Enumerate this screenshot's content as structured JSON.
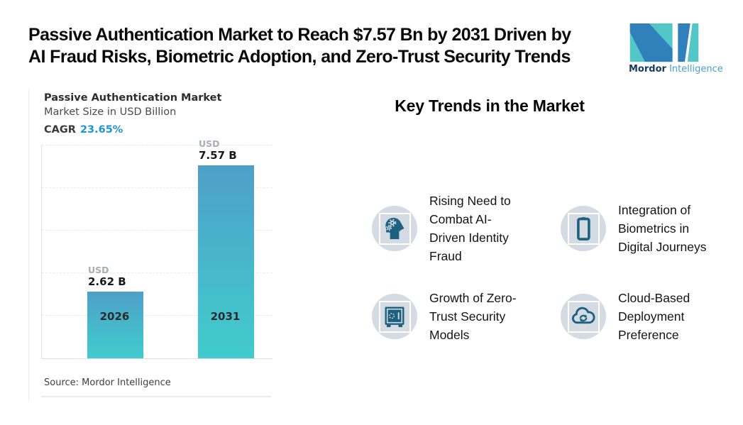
{
  "header": {
    "title_lines": [
      "Passive Authentication Market to Reach $7.57 Bn by 2031 Driven by",
      "AI Fraud Risks, Biometric Adoption, and Zero-Trust Security Trends"
    ],
    "logo": {
      "name_bold": "Mordor",
      "name_light": "Intelligence"
    }
  },
  "chart": {
    "title": "Passive Authentication Market",
    "subtitle": "Market Size in USD Billion",
    "cagr_label": "CAGR",
    "cagr_value": "23.65%",
    "source": "Source: Mordor Intelligence"
  },
  "chart_data": {
    "type": "bar",
    "title": "Passive Authentication Market",
    "subtitle": "Market Size in USD Billion",
    "cagr_percent": 23.65,
    "categories": [
      "2026",
      "2031"
    ],
    "values": [
      2.62,
      7.57
    ],
    "value_labels": [
      {
        "currency": "USD",
        "amount": "2.62 B"
      },
      {
        "currency": "USD",
        "amount": "7.57 B"
      }
    ],
    "unit": "USD Billion",
    "ylim": [
      0,
      8.4
    ],
    "grid": "horizontal-dashed",
    "legend": "none",
    "source": "Source: Mordor Intelligence",
    "bar_gradient": [
      "#4f9fc9",
      "#41cbcd"
    ]
  },
  "trends": {
    "heading": "Key Trends in the Market",
    "items": [
      {
        "icon": "ai-head-gears-icon",
        "lines": [
          "Rising Need to",
          "Combat AI-",
          "Driven Identity",
          "Fraud"
        ]
      },
      {
        "icon": "smartphone-icon",
        "lines": [
          "Integration of",
          "Biometrics in",
          "Digital Journeys"
        ]
      },
      {
        "icon": "safe-vault-icon",
        "lines": [
          "Growth of Zero-",
          "Trust Security",
          "Models"
        ]
      },
      {
        "icon": "cloud-sync-icon",
        "lines": [
          "Cloud-Based",
          "Deployment",
          "Preference"
        ]
      }
    ]
  },
  "colors": {
    "accent_blue": "#1e96d6",
    "bar_top": "#4f9fc9",
    "bar_bottom": "#41cbcd",
    "badge_bg": "#d4dbe2",
    "icon_blue": "#1d6080",
    "logo_teal": "#53c7c7",
    "logo_blue": "#3080bb",
    "text_dark": "#0a0a0a"
  }
}
